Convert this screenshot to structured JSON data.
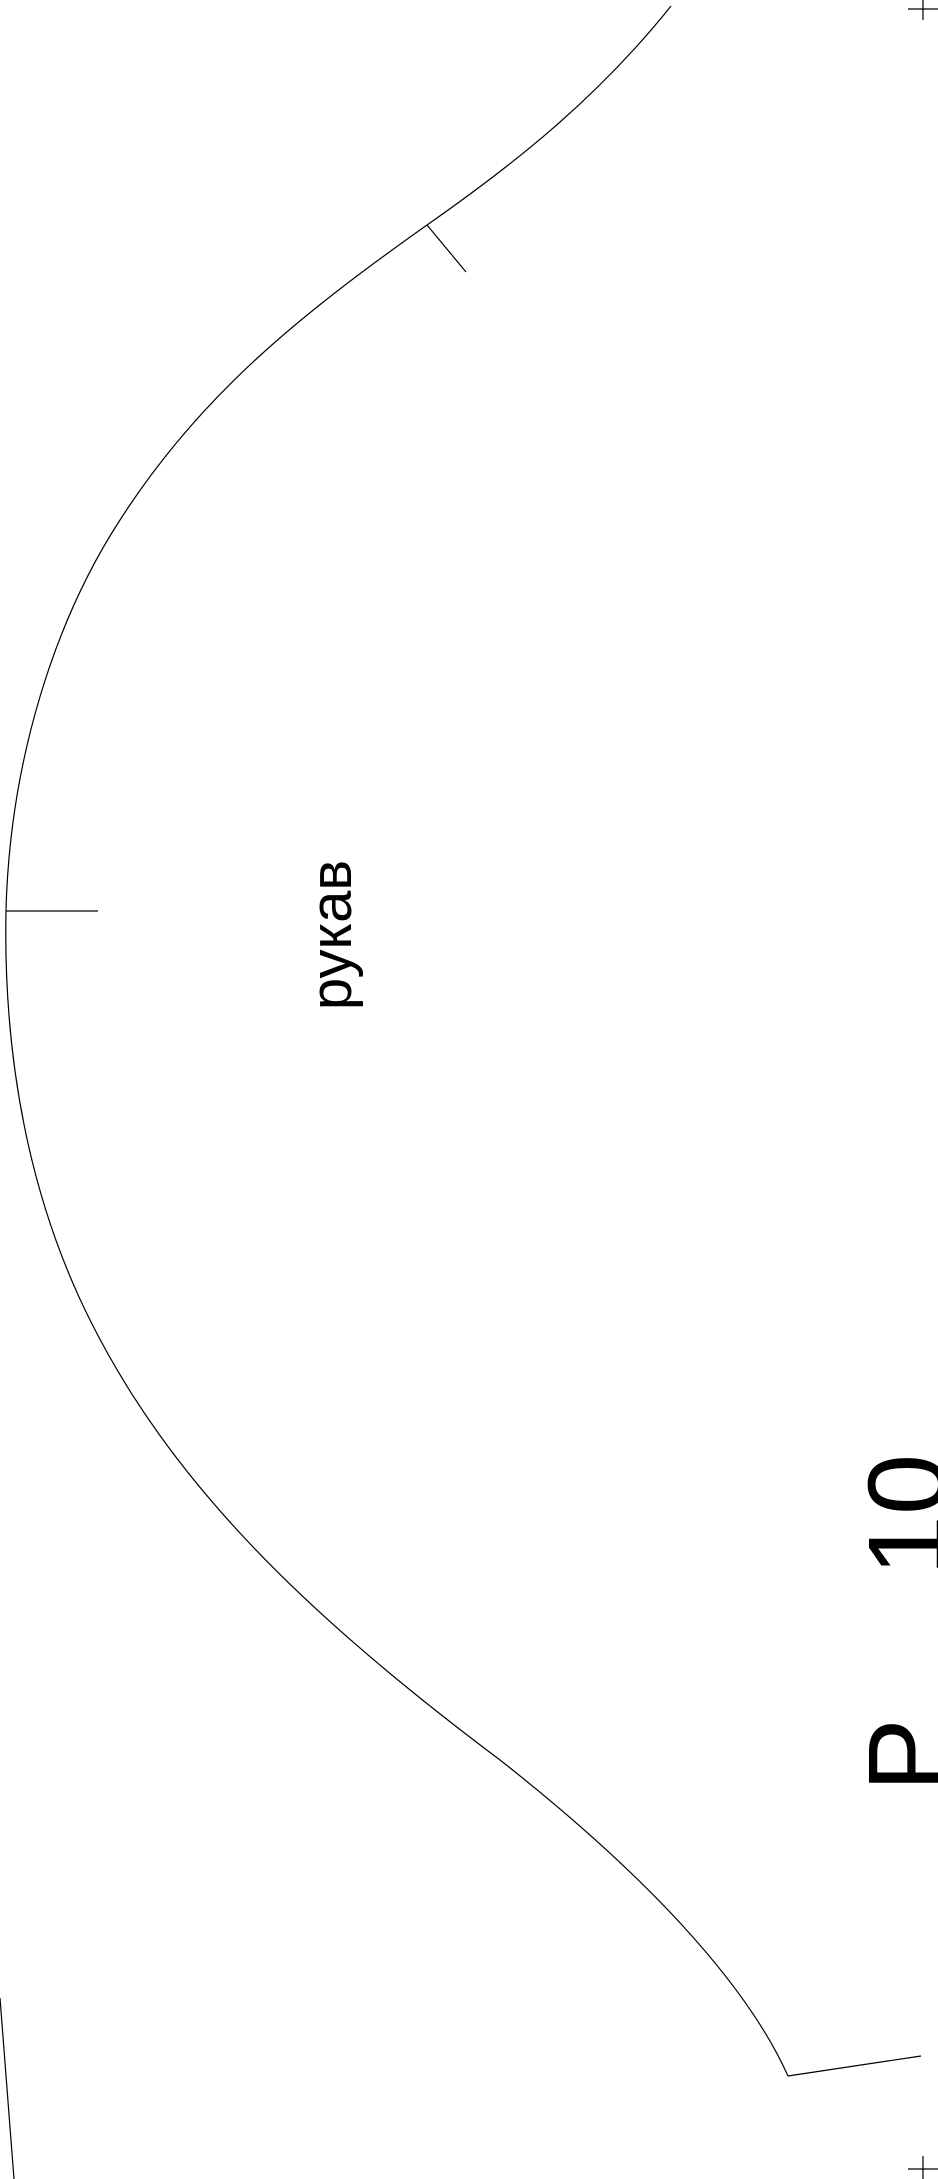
{
  "pattern": {
    "piece_label": "рукав",
    "cut_off_label_top": "10",
    "cut_off_label_bottom": "P"
  },
  "colors": {
    "background": "#ffffff",
    "line": "#000000"
  }
}
